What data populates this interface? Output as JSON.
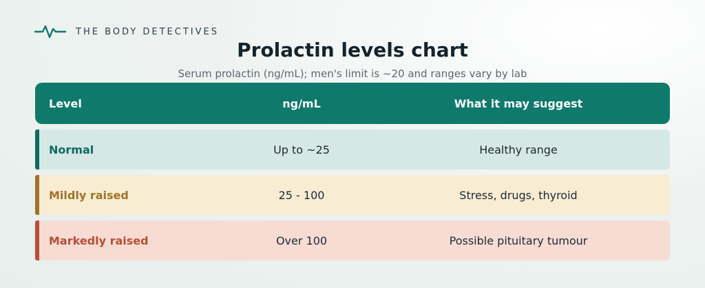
{
  "brand": {
    "name": "THE BODY DETECTIVES",
    "logo_icon": "pulse-line-icon",
    "color": "#0f7a6c"
  },
  "title": "Prolactin levels chart",
  "subtitle": "Serum prolactin (ng/mL); men's limit is ~20 and ranges vary by lab",
  "table": {
    "header_bg": "#0f7a6c",
    "columns": [
      "Level",
      "ng/mL",
      "What it may suggest"
    ],
    "rows": [
      {
        "level": "Normal",
        "value": "Up to ~25",
        "suggestion": "Healthy range",
        "accent": "#0f6b5e",
        "bg": "#d6e8e6"
      },
      {
        "level": "Mildly raised",
        "value": "25 - 100",
        "suggestion": "Stress, drugs, thyroid",
        "accent": "#a07328",
        "bg": "#f8ecd3"
      },
      {
        "level": "Markedly raised",
        "value": "Over 100",
        "suggestion": "Possible pituitary tumour",
        "accent": "#b84f36",
        "bg": "#f7dcd4"
      }
    ]
  }
}
